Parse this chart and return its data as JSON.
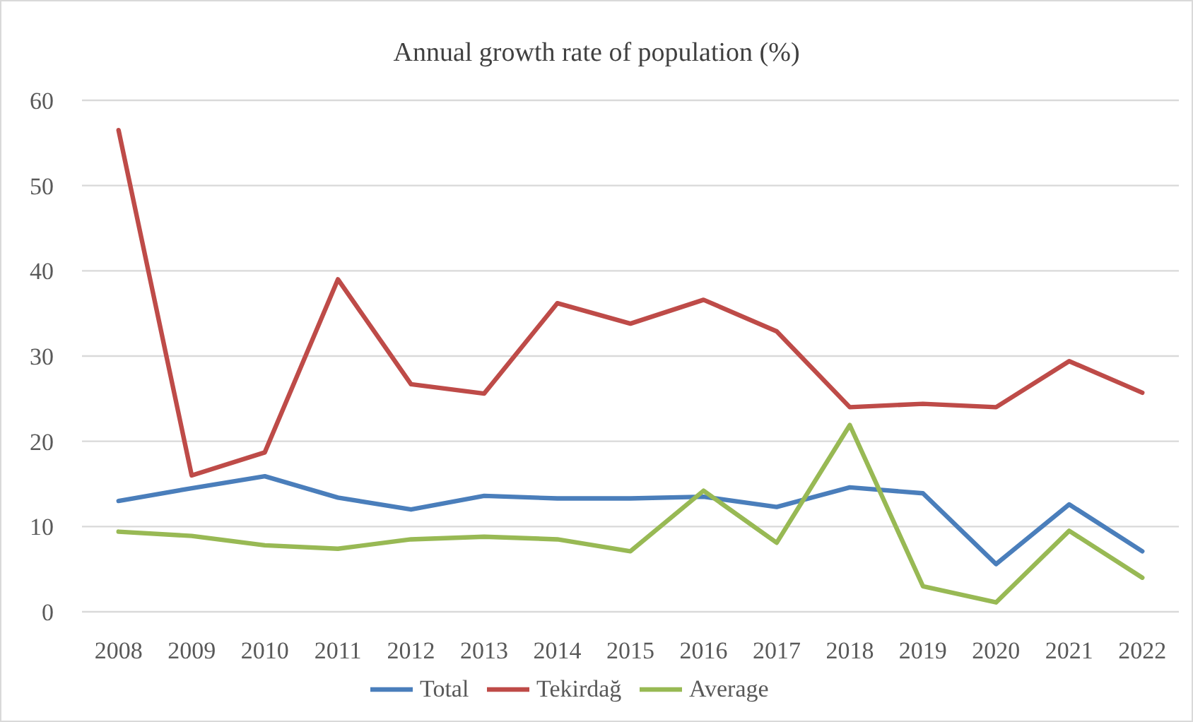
{
  "chart_data": {
    "type": "line",
    "title": "Annual growth rate of population (%)",
    "categories": [
      "2008",
      "2009",
      "2010",
      "2011",
      "2012",
      "2013",
      "2014",
      "2015",
      "2016",
      "2017",
      "2018",
      "2019",
      "2020",
      "2021",
      "2022"
    ],
    "series": [
      {
        "name": "Total",
        "color": "#4a7ebb",
        "values": [
          13,
          14.5,
          15.9,
          13.4,
          12,
          13.6,
          13.3,
          13.3,
          13.5,
          12.3,
          14.6,
          13.9,
          5.6,
          12.6,
          7.1
        ]
      },
      {
        "name": "Tekirdağ",
        "color": "#be4b48",
        "values": [
          56.5,
          16,
          18.7,
          39,
          26.7,
          25.6,
          36.2,
          33.8,
          36.6,
          32.9,
          24,
          24.4,
          24,
          29.4,
          25.7
        ]
      },
      {
        "name": "Average",
        "color": "#98b954",
        "values": [
          9.4,
          8.9,
          7.8,
          7.4,
          8.5,
          8.8,
          8.5,
          7.1,
          14.2,
          8.1,
          21.9,
          3,
          1.1,
          9.5,
          4
        ]
      }
    ],
    "ylim": [
      0,
      60
    ],
    "yticks": [
      0,
      10,
      20,
      30,
      40,
      50,
      60
    ],
    "grid": "y",
    "legend": "bottom",
    "marker": "none",
    "line_style": "solid"
  }
}
